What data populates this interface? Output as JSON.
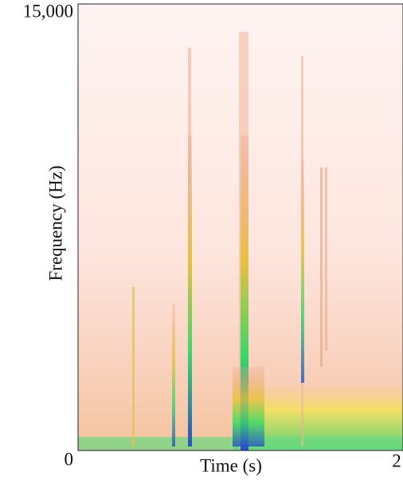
{
  "chart_data": {
    "type": "spectrogram",
    "x_label": "Time (s)",
    "y_label": "Frequency (Hz)",
    "xlim": [
      0,
      2
    ],
    "xticks": [
      0,
      2
    ],
    "ylim": [
      0,
      15000
    ],
    "yticks": [
      0,
      {
        "value": 15000,
        "label": "15,000"
      }
    ]
  }
}
